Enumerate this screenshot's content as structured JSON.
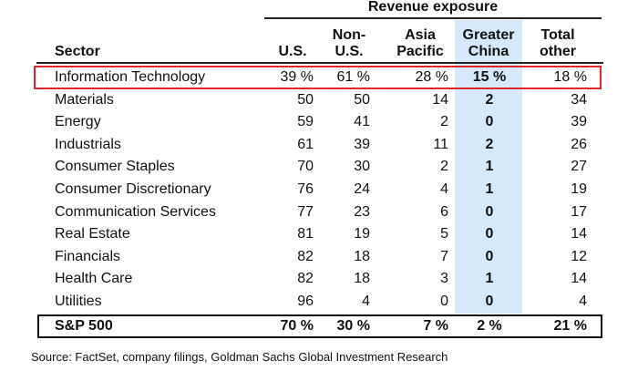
{
  "table": {
    "super_header": "Revenue exposure",
    "columns": {
      "sector": "Sector",
      "us": "U.S.",
      "non_us": [
        "Non-",
        "U.S."
      ],
      "asia": [
        "Asia",
        "Pacific"
      ],
      "china": [
        "Greater",
        "China"
      ],
      "total": [
        "Total",
        "other"
      ]
    },
    "rows": [
      {
        "sector": "Information Technology",
        "us": "39 %",
        "non_us": "61 %",
        "asia": "28 %",
        "china": "15 %",
        "total": "18 %"
      },
      {
        "sector": "Materials",
        "us": "50",
        "non_us": "50",
        "asia": "14",
        "china": "2",
        "total": "34"
      },
      {
        "sector": "Energy",
        "us": "59",
        "non_us": "41",
        "asia": "2",
        "china": "0",
        "total": "39"
      },
      {
        "sector": "Industrials",
        "us": "61",
        "non_us": "39",
        "asia": "11",
        "china": "2",
        "total": "26"
      },
      {
        "sector": "Consumer Staples",
        "us": "70",
        "non_us": "30",
        "asia": "2",
        "china": "1",
        "total": "27"
      },
      {
        "sector": "Consumer Discretionary",
        "us": "76",
        "non_us": "24",
        "asia": "4",
        "china": "1",
        "total": "19"
      },
      {
        "sector": "Communication Services",
        "us": "77",
        "non_us": "23",
        "asia": "6",
        "china": "0",
        "total": "17"
      },
      {
        "sector": "Real Estate",
        "us": "81",
        "non_us": "19",
        "asia": "5",
        "china": "0",
        "total": "14"
      },
      {
        "sector": "Financials",
        "us": "82",
        "non_us": "18",
        "asia": "7",
        "china": "0",
        "total": "12"
      },
      {
        "sector": "Health Care",
        "us": "82",
        "non_us": "18",
        "asia": "3",
        "china": "1",
        "total": "14"
      },
      {
        "sector": "Utilities",
        "us": "96",
        "non_us": "4",
        "asia": "0",
        "china": "0",
        "total": "4"
      }
    ],
    "total_row": {
      "sector": "S&P 500",
      "us": "70 %",
      "non_us": "30 %",
      "asia": "7 %",
      "china": "2 %",
      "total": "21 %"
    }
  },
  "colors": {
    "highlight_border": "#e0262b",
    "china_band": "#d6e9fa"
  },
  "source": "Source: FactSet, company filings, Goldman Sachs Global Investment Research"
}
